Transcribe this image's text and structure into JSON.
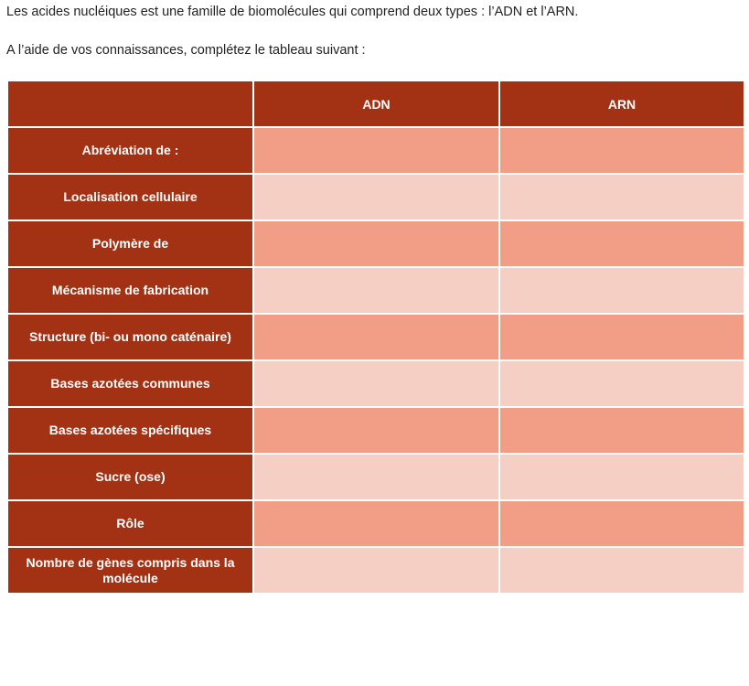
{
  "intro": "Les acides nucléiques est une famille de biomolécules qui comprend deux types : l’ADN et l’ARN.",
  "instruction": "A l’aide de vos connaissances, complétez le tableau suivant :",
  "table": {
    "headers": [
      "",
      "ADN",
      "ARN"
    ],
    "rows": [
      {
        "label": "Abréviation de :",
        "adn": "",
        "arn": ""
      },
      {
        "label": "Localisation cellulaire",
        "adn": "",
        "arn": ""
      },
      {
        "label": "Polymère de",
        "adn": "",
        "arn": ""
      },
      {
        "label": "Mécanisme de fabrication",
        "adn": "",
        "arn": ""
      },
      {
        "label": "Structure (bi- ou mono caténaire)",
        "adn": "",
        "arn": ""
      },
      {
        "label": "Bases azotées communes",
        "adn": "",
        "arn": ""
      },
      {
        "label": "Bases azotées spécifiques",
        "adn": "",
        "arn": ""
      },
      {
        "label": "Sucre (ose)",
        "adn": "",
        "arn": ""
      },
      {
        "label": "Rôle",
        "adn": "",
        "arn": ""
      },
      {
        "label": "Nombre de gènes compris dans la molécule",
        "adn": "",
        "arn": ""
      }
    ]
  },
  "colors": {
    "header": "#a33114",
    "row_dark": "#f29d85",
    "row_light": "#f6cfc4"
  }
}
